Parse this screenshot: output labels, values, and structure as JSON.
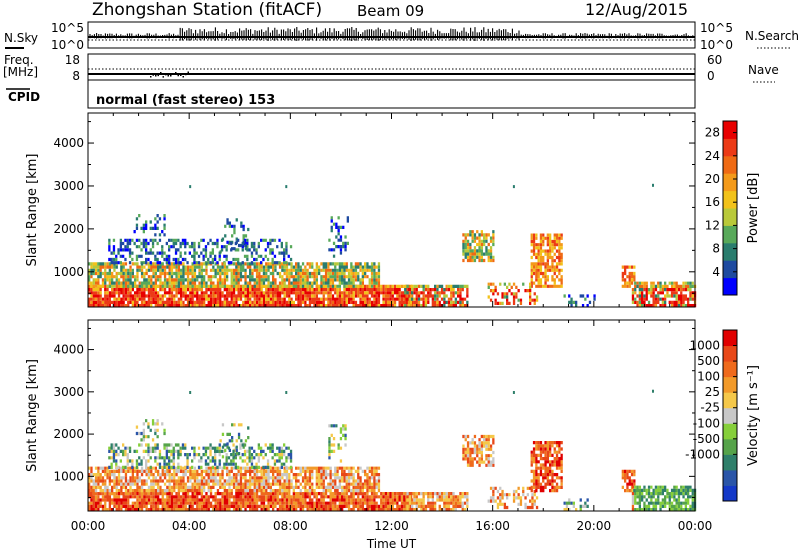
{
  "header": {
    "station": "Zhongshan Station (fitACF)",
    "beam": "Beam 09",
    "date": "12/Aug/2015"
  },
  "top_panels": {
    "nsky_label": "N.Sky",
    "nsky_ticks": [
      "10^5",
      "10^0"
    ],
    "nsearch_label": "N.Search",
    "nsearch_ticks": [
      "10^5",
      "10^0"
    ],
    "freq_label": "Freq.",
    "freq_unit": "[MHz]",
    "freq_ticks": [
      "18",
      "8"
    ],
    "nave_label": "Nave",
    "nave_ticks": [
      "60",
      "0"
    ],
    "cpid_label": "CPID",
    "cpid_text": "normal (fast stereo) 153"
  },
  "colors": {
    "power_scale": [
      "#0000ff",
      "#1e4aa0",
      "#2a7d6e",
      "#58a95a",
      "#b9c93a",
      "#f2c21a",
      "#f49a1a",
      "#ef6a14",
      "#ec3a16",
      "#e80000"
    ],
    "velocity_scale": [
      "#1439c8",
      "#2a55a8",
      "#2f7f6a",
      "#56a34a",
      "#86cf3a",
      "#c8c8c8",
      "#f5c84a",
      "#f29a2a",
      "#ef6a1c",
      "#e84818",
      "#e00000"
    ],
    "ground_scatter": "#808080"
  },
  "chart_data": [
    {
      "type": "heatmap",
      "panel": "power",
      "xlabel": "",
      "ylabel": "Slant Range [km]",
      "yticks": [
        "1000",
        "2000",
        "3000",
        "4000"
      ],
      "ylim": [
        180,
        4700
      ],
      "colorbar_label": "Power [dB]",
      "colorbar_ticks": [
        "4",
        "8",
        "12",
        "16",
        "20",
        "24",
        "28"
      ],
      "colorbar_range": [
        0,
        30
      ]
    },
    {
      "type": "heatmap",
      "panel": "velocity",
      "xlabel": "Time UT",
      "ylabel": "Slant Range [km]",
      "yticks": [
        "1000",
        "2000",
        "3000",
        "4000"
      ],
      "ylim": [
        180,
        4700
      ],
      "xticks": [
        "00:00",
        "04:00",
        "08:00",
        "12:00",
        "16:00",
        "20:00",
        "00:00"
      ],
      "xlim": [
        0,
        24
      ],
      "colorbar_label": "Velocity [m s⁻¹]",
      "colorbar_ticks": [
        "1000",
        "500",
        "100",
        "25",
        "-25",
        "-100",
        "-500",
        "-1000"
      ]
    }
  ]
}
